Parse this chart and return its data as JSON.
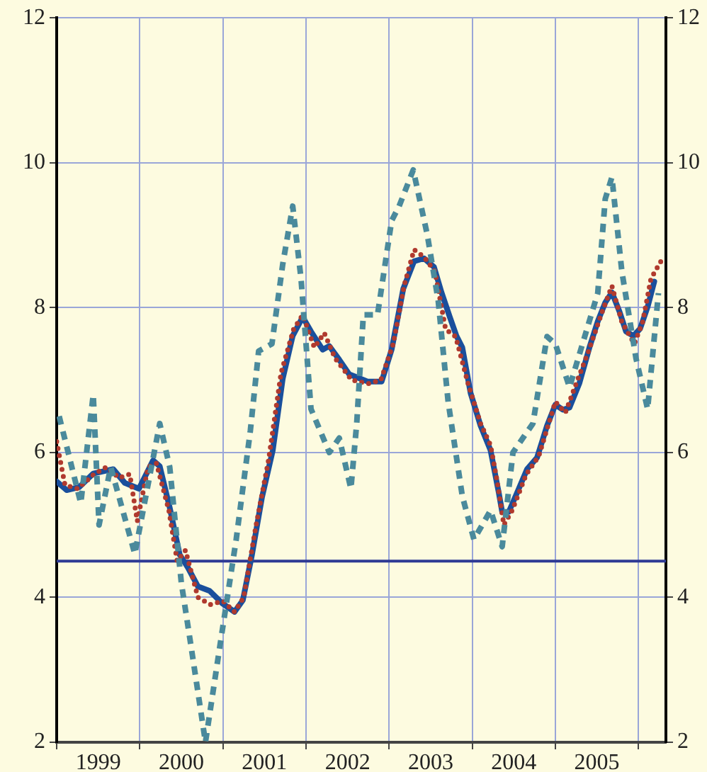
{
  "chart_data": {
    "type": "line",
    "xlim": [
      1999,
      2006.33
    ],
    "xticks": [
      {
        "value": 1999,
        "label": null
      },
      {
        "value": 1999.5,
        "label": "1999"
      },
      {
        "value": 2000,
        "label": null
      },
      {
        "value": 2000.5,
        "label": "2000"
      },
      {
        "value": 2001,
        "label": null
      },
      {
        "value": 2001.5,
        "label": "2001"
      },
      {
        "value": 2002,
        "label": null
      },
      {
        "value": 2002.5,
        "label": "2002"
      },
      {
        "value": 2003,
        "label": null
      },
      {
        "value": 2003.5,
        "label": "2003"
      },
      {
        "value": 2004,
        "label": null
      },
      {
        "value": 2004.5,
        "label": "2004"
      },
      {
        "value": 2005,
        "label": null
      },
      {
        "value": 2005.5,
        "label": "2005"
      },
      {
        "value": 2006,
        "label": null
      }
    ],
    "ylim": [
      2,
      12
    ],
    "yticks": [
      2,
      4,
      6,
      8,
      10,
      12
    ],
    "y2lim": [
      2,
      12
    ],
    "y2ticks": [
      2,
      4,
      6,
      8,
      10,
      12
    ],
    "grid": true,
    "ref_lines": [
      {
        "axis": "y",
        "value": 4.5,
        "color": "#2e3a94"
      }
    ],
    "series": [
      {
        "color": "#4a8a9c",
        "line_style": "dashed",
        "x": [
          1999.03,
          1999.29,
          1999.44,
          1999.51,
          1999.65,
          1999.94,
          2000.24,
          2000.36,
          2000.5,
          2000.62,
          2000.79,
          2000.96,
          2001.16,
          2001.33,
          2001.43,
          2001.59,
          2001.72,
          2001.84,
          2001.94,
          2002.06,
          2002.28,
          2002.4,
          2002.54,
          2002.61,
          2002.69,
          2002.86,
          2003.03,
          2003.12,
          2003.29,
          2003.46,
          2003.59,
          2003.71,
          2003.88,
          2004.02,
          2004.22,
          2004.36,
          2004.49,
          2004.73,
          2004.9,
          2005.0,
          2005.17,
          2005.51,
          2005.6,
          2005.68,
          2005.8,
          2005.97,
          2006.11,
          2006.24
        ],
        "values": [
          6.5,
          5.3,
          6.8,
          5.0,
          5.8,
          4.6,
          6.4,
          5.8,
          4.2,
          3.3,
          2.0,
          3.3,
          4.8,
          6.3,
          7.4,
          7.5,
          8.6,
          9.4,
          8.4,
          6.6,
          6.0,
          6.2,
          5.5,
          6.4,
          7.9,
          7.9,
          9.2,
          9.4,
          9.9,
          9.0,
          8.1,
          6.7,
          5.4,
          4.8,
          5.2,
          4.7,
          6.0,
          6.4,
          7.6,
          7.5,
          6.9,
          8.2,
          9.5,
          9.8,
          8.5,
          7.3,
          6.6,
          8.2
        ]
      },
      {
        "color": "#b03a2e",
        "line_style": "dotted",
        "x": [
          1999.0,
          1999.1,
          1999.25,
          1999.45,
          1999.6,
          1999.75,
          1999.88,
          1999.97,
          2000.1,
          2000.2,
          2000.35,
          2000.45,
          2000.55,
          2000.7,
          2000.85,
          2001.0,
          2001.14,
          2001.25,
          2001.4,
          2001.55,
          2001.7,
          2001.85,
          2001.96,
          2002.1,
          2002.22,
          2002.35,
          2002.55,
          2002.75,
          2002.9,
          2003.05,
          2003.18,
          2003.3,
          2003.42,
          2003.55,
          2003.68,
          2003.8,
          2003.95,
          2004.1,
          2004.22,
          2004.3,
          2004.38,
          2004.48,
          2004.65,
          2004.8,
          2004.92,
          2005.0,
          2005.12,
          2005.25,
          2005.4,
          2005.55,
          2005.68,
          2005.8,
          2005.95,
          2006.05,
          2006.15,
          2006.3
        ],
        "values": [
          6.15,
          5.55,
          5.5,
          5.7,
          5.8,
          5.65,
          5.7,
          5.05,
          5.8,
          5.85,
          5.2,
          4.5,
          4.65,
          4.0,
          3.9,
          3.95,
          3.8,
          4.0,
          5.0,
          5.9,
          7.1,
          7.7,
          7.9,
          7.45,
          7.65,
          7.3,
          7.0,
          6.95,
          7.0,
          7.5,
          8.3,
          8.8,
          8.7,
          8.5,
          7.7,
          7.6,
          6.95,
          6.4,
          6.1,
          5.6,
          5.0,
          5.2,
          5.7,
          5.95,
          6.4,
          6.7,
          6.55,
          6.95,
          7.4,
          7.9,
          8.3,
          7.8,
          7.5,
          7.8,
          8.4,
          8.7
        ]
      },
      {
        "color": "#1a4f9c",
        "line_style": "solid",
        "x": [
          1999.0,
          1999.12,
          1999.27,
          1999.44,
          1999.68,
          1999.82,
          1999.99,
          2000.16,
          2000.24,
          2000.36,
          2000.48,
          2000.58,
          2000.7,
          2000.84,
          2000.99,
          2001.14,
          2001.24,
          2001.35,
          2001.47,
          2001.6,
          2001.72,
          2001.84,
          2001.96,
          2002.06,
          2002.2,
          2002.28,
          2002.4,
          2002.52,
          2002.74,
          2002.91,
          2003.03,
          2003.17,
          2003.3,
          2003.42,
          2003.54,
          2003.63,
          2003.73,
          2003.81,
          2003.88,
          2003.98,
          2004.1,
          2004.22,
          2004.32,
          2004.36,
          2004.44,
          2004.56,
          2004.66,
          2004.78,
          2004.9,
          2005.0,
          2005.09,
          2005.17,
          2005.29,
          2005.41,
          2005.51,
          2005.6,
          2005.68,
          2005.77,
          2005.85,
          2005.94,
          2006.02,
          2006.11,
          2006.19
        ],
        "values": [
          5.6,
          5.48,
          5.52,
          5.71,
          5.77,
          5.58,
          5.5,
          5.89,
          5.81,
          5.24,
          4.59,
          4.41,
          4.15,
          4.09,
          3.92,
          3.8,
          3.96,
          4.59,
          5.38,
          6.03,
          7.02,
          7.61,
          7.87,
          7.67,
          7.42,
          7.47,
          7.28,
          7.08,
          6.98,
          6.98,
          7.42,
          8.26,
          8.64,
          8.68,
          8.56,
          8.21,
          7.87,
          7.61,
          7.45,
          6.82,
          6.37,
          6.03,
          5.44,
          5.18,
          5.18,
          5.5,
          5.77,
          5.93,
          6.37,
          6.66,
          6.59,
          6.62,
          6.96,
          7.45,
          7.81,
          8.07,
          8.21,
          7.95,
          7.67,
          7.61,
          7.71,
          8.01,
          8.36
        ]
      }
    ]
  }
}
